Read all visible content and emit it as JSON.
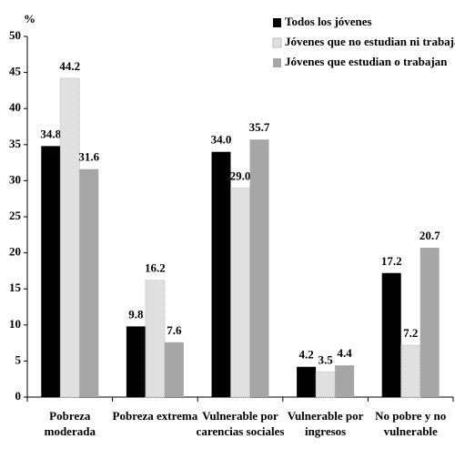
{
  "chart_data": {
    "type": "bar",
    "y_label": "%",
    "categories": [
      "Pobreza\nmoderada",
      "Pobreza extrema",
      "Vulnerable por\ncarencias sociales",
      "Vulnerable por\ningresos",
      "No pobre y no\nvulnerable"
    ],
    "series": [
      {
        "name": "Todos los jóvenes",
        "color": "#000000",
        "values": [
          34.8,
          9.8,
          34.0,
          4.2,
          17.2
        ],
        "value_labels": [
          "34.8",
          "9.8",
          "34.0",
          "4.2",
          "17.2"
        ]
      },
      {
        "name": "Jóvenes que no estudian ni trabajan",
        "color": "#e0e0e0",
        "values": [
          44.2,
          16.2,
          29.0,
          3.5,
          7.2
        ],
        "value_labels": [
          "44.2",
          "16.2",
          "29.0",
          "3.5",
          "7.2"
        ]
      },
      {
        "name": "Jóvenes que estudian o trabajan",
        "color": "#a6a6a6",
        "values": [
          31.6,
          7.6,
          35.7,
          4.4,
          20.7
        ],
        "value_labels": [
          "31.6",
          "7.6",
          "35.7",
          "4.4",
          "20.7"
        ]
      }
    ],
    "ylim": [
      0,
      50
    ],
    "yticks": [
      0,
      5,
      10,
      15,
      20,
      25,
      30,
      35,
      40,
      45,
      50
    ],
    "legend": "top-right"
  }
}
